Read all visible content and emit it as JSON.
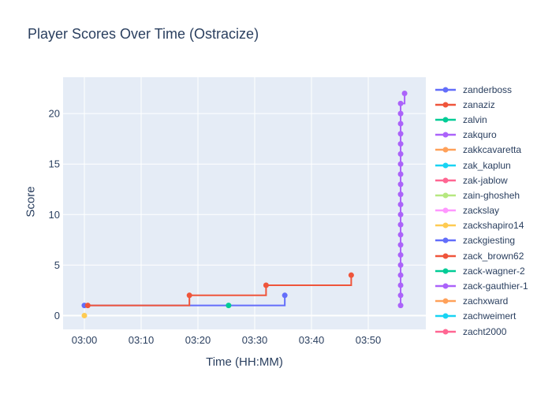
{
  "title": "Player Scores Over Time (Ostracize)",
  "colors": {
    "text": "#2a3f5f",
    "paper_bg": "#ffffff",
    "plot_bg": "#e5ecf6",
    "grid": "#ffffff"
  },
  "chart_data": {
    "type": "line",
    "line_shape": "step-hv",
    "mode": "lines+markers",
    "title": "Player Scores Over Time (Ostracize)",
    "xlabel": "Time (HH:MM)",
    "ylabel": "Score",
    "legend_position": "right",
    "grid": true,
    "x_units": "minutes after 03:00",
    "x_range_minutes": [
      -3.75,
      60.14
    ],
    "y_range": [
      -1.37,
      23.6
    ],
    "x_ticks": [
      {
        "t": 0,
        "label": "03:00"
      },
      {
        "t": 10,
        "label": "03:10"
      },
      {
        "t": 20,
        "label": "03:20"
      },
      {
        "t": 30,
        "label": "03:30"
      },
      {
        "t": 40,
        "label": "03:40"
      },
      {
        "t": 50,
        "label": "03:50"
      }
    ],
    "y_ticks": [
      0,
      5,
      10,
      15,
      20
    ],
    "series": [
      {
        "name": "zanderboss",
        "color": "#636EFA",
        "points": [
          [
            0,
            1
          ],
          [
            35.3,
            2
          ]
        ]
      },
      {
        "name": "zanaziz",
        "color": "#EF553B",
        "points": [
          [
            0.6,
            1
          ],
          [
            18.5,
            2
          ],
          [
            32,
            3
          ],
          [
            47,
            4
          ]
        ]
      },
      {
        "name": "zalvin",
        "color": "#00CC96",
        "points": [
          [
            25.4,
            1
          ]
        ]
      },
      {
        "name": "zakquro",
        "color": "#AB63FA",
        "points": [
          [
            55.7,
            1
          ],
          [
            55.7,
            2
          ],
          [
            55.7,
            3
          ],
          [
            55.7,
            4
          ],
          [
            55.7,
            5
          ],
          [
            55.7,
            6
          ],
          [
            55.7,
            7
          ],
          [
            55.7,
            8
          ],
          [
            55.7,
            9
          ],
          [
            55.7,
            10
          ],
          [
            55.7,
            11
          ],
          [
            55.7,
            12
          ],
          [
            55.7,
            13
          ],
          [
            55.7,
            14
          ],
          [
            55.7,
            15
          ],
          [
            55.7,
            16
          ],
          [
            55.7,
            17
          ],
          [
            55.7,
            18
          ],
          [
            55.7,
            19
          ],
          [
            55.7,
            20
          ],
          [
            55.7,
            21
          ],
          [
            56.4,
            22
          ]
        ]
      },
      {
        "name": "zakkcavaretta",
        "color": "#FFA15A",
        "points": []
      },
      {
        "name": "zak_kaplun",
        "color": "#19D3F3",
        "points": []
      },
      {
        "name": "zak-jablow",
        "color": "#FF6692",
        "points": []
      },
      {
        "name": "zain-ghosheh",
        "color": "#B6E880",
        "points": []
      },
      {
        "name": "zackslay",
        "color": "#FF97FF",
        "points": []
      },
      {
        "name": "zackshapiro14",
        "color": "#FECB52",
        "points": [
          [
            0,
            0
          ]
        ]
      },
      {
        "name": "zackgiesting",
        "color": "#636EFA",
        "points": []
      },
      {
        "name": "zack_brown62",
        "color": "#EF553B",
        "points": []
      },
      {
        "name": "zack-wagner-2",
        "color": "#00CC96",
        "points": []
      },
      {
        "name": "zack-gauthier-1",
        "color": "#AB63FA",
        "points": []
      },
      {
        "name": "zachxward",
        "color": "#FFA15A",
        "points": []
      },
      {
        "name": "zachweimert",
        "color": "#19D3F3",
        "points": []
      },
      {
        "name": "zacht2000",
        "color": "#FF6692",
        "points": []
      }
    ]
  }
}
